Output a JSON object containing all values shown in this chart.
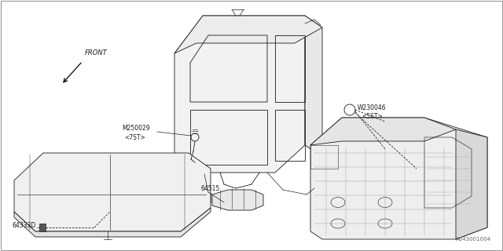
{
  "background_color": "#ffffff",
  "fig_width": 6.4,
  "fig_height": 3.2,
  "dpi": 100,
  "part_number_bottom_right": "A643001004",
  "line_color": "#1a1a1a",
  "line_width": 0.6,
  "font_size": 5.5,
  "labels": {
    "front": "FRONT",
    "m250029": "M250029",
    "m250029_sub": "<7ST>",
    "w230046": "W230046",
    "w230046_sub": "<5ST>",
    "part1": "64515",
    "part2": "64333D"
  }
}
